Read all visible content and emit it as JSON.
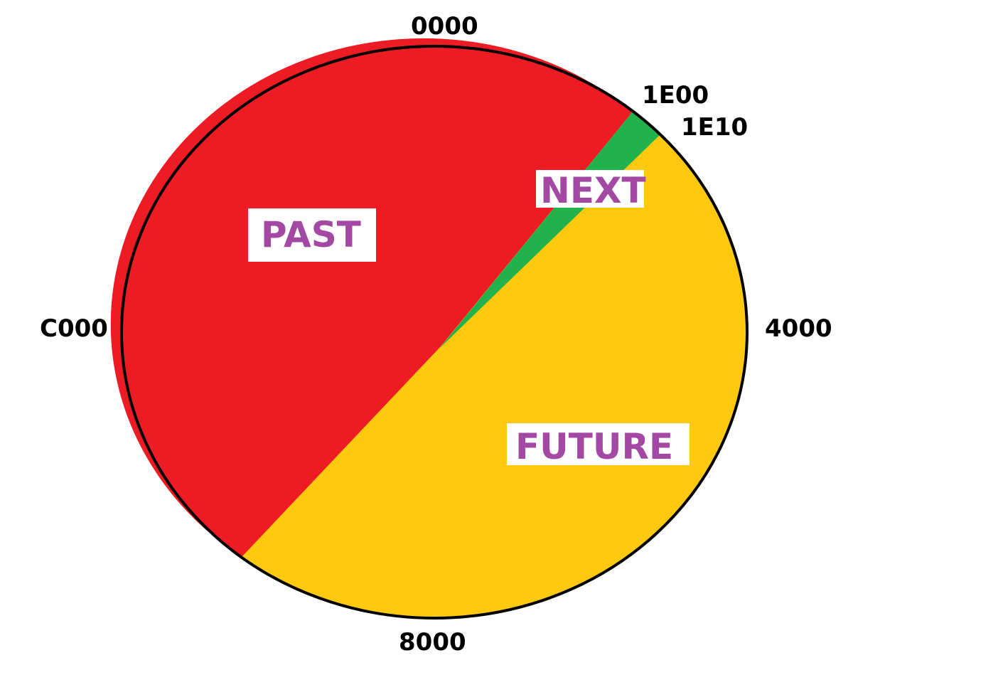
{
  "colors": {
    "past": "#ed1c24",
    "next": "#22b14c",
    "future": "#fec90f",
    "label_text": "#a349a4",
    "outline": "#000000"
  },
  "ticks": {
    "top": "0000",
    "next_start": "1E00",
    "next_end": "1E10",
    "right": "4000",
    "bottom": "8000",
    "left": "C000"
  },
  "regions": {
    "past": "PAST",
    "next": "NEXT",
    "future": "FUTURE"
  }
}
